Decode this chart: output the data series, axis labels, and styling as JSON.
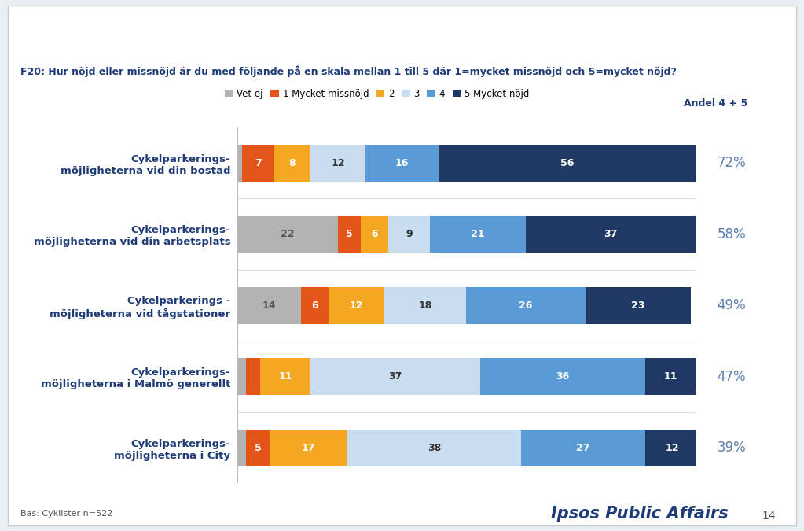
{
  "title": "F20: Hur nöjd eller missnöjd är du med följande på en skala mellan 1 till 5 där 1=mycket missnöjd och 5=mycket nöjd?",
  "categories": [
    "Cykelparkerings-\nmöjligheterna vid din bostad",
    "Cykelparkerings-\nmöjligheterna vid din arbetsplats",
    "Cykelparkerings -\nmöjligheterna vid tågstationer",
    "Cykelparkerings-\nmöjligheterna i Malmö generellt",
    "Cykelparkerings-\nmöjligheterna i City"
  ],
  "andel": [
    "72%",
    "58%",
    "49%",
    "47%",
    "39%"
  ],
  "data": {
    "Vet ej": [
      1,
      22,
      14,
      2,
      2
    ],
    "1 Mycket missnöjd": [
      7,
      5,
      6,
      3,
      5
    ],
    "2": [
      8,
      6,
      12,
      11,
      17
    ],
    "3": [
      12,
      9,
      18,
      37,
      38
    ],
    "4": [
      16,
      21,
      26,
      36,
      27
    ],
    "5 Mycket nöjd": [
      56,
      37,
      23,
      11,
      12
    ]
  },
  "colors": {
    "Vet ej": "#b3b3b3",
    "1 Mycket missnöjd": "#e5541b",
    "2": "#f5a623",
    "3": "#c9ddf0",
    "4": "#5b9bd5",
    "5 Mycket nöjd": "#1f3864"
  },
  "legend_order": [
    "Vet ej",
    "1 Mycket missnöjd",
    "2",
    "3",
    "4",
    "5 Mycket nöjd"
  ],
  "background_color": "#ffffff",
  "outer_bg": "#e8eef4",
  "plot_bg": "#ffffff",
  "title_fontsize": 9,
  "bar_height": 0.52,
  "andel_label": "Andel 4 + 5",
  "footer_left": "Bas: Cyklister n=522",
  "footer_right": "Ipsos Public Affairs",
  "page_number": "14"
}
